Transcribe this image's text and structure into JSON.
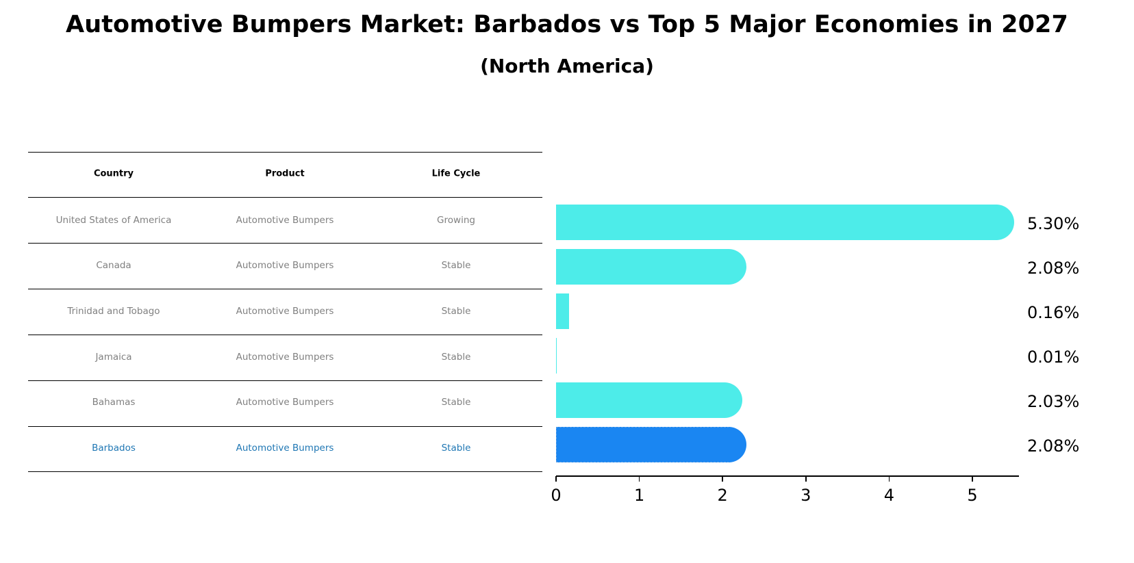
{
  "title": "Automotive Bumpers Market: Barbados vs Top 5 Major Economies in 2027",
  "subtitle": "(North America)",
  "table": {
    "headers": [
      "Country",
      "Product",
      "Life Cycle"
    ],
    "rows": [
      {
        "country": "United States of America",
        "product": "Automotive Bumpers",
        "life_cycle": "Growing"
      },
      {
        "country": "Canada",
        "product": "Automotive Bumpers",
        "life_cycle": "Stable"
      },
      {
        "country": "Trinidad and Tobago",
        "product": "Automotive Bumpers",
        "life_cycle": "Stable"
      },
      {
        "country": "Jamaica",
        "product": "Automotive Bumpers",
        "life_cycle": "Stable"
      },
      {
        "country": "Bahamas",
        "product": "Automotive Bumpers",
        "life_cycle": "Stable"
      },
      {
        "country": "Barbados",
        "product": "Automotive Bumpers",
        "life_cycle": "Stable"
      }
    ],
    "highlight_row": 5,
    "text_color": "#808080",
    "highlight_color": "#1f77b4"
  },
  "colors": {
    "bar": "#4dece9",
    "highlight_bar": "#1a86f2"
  },
  "chart_data": {
    "type": "bar",
    "orientation": "horizontal",
    "title": "Automotive Bumpers Market: Barbados vs Top 5 Major Economies in 2027",
    "subtitle": "(North America)",
    "categories": [
      "United States of America",
      "Canada",
      "Trinidad and Tobago",
      "Jamaica",
      "Bahamas",
      "Barbados"
    ],
    "values": [
      5.3,
      2.08,
      0.16,
      0.01,
      2.03,
      2.08
    ],
    "value_labels": [
      "5.30%",
      "2.08%",
      "0.16%",
      "0.01%",
      "2.03%",
      "2.08%"
    ],
    "highlight": "Barbados",
    "xlabel": "",
    "ylabel": "",
    "xticks": [
      "0",
      "1",
      "2",
      "3",
      "4",
      "5"
    ],
    "xlim": [
      0,
      5.56
    ],
    "grid": false,
    "legend": null
  }
}
